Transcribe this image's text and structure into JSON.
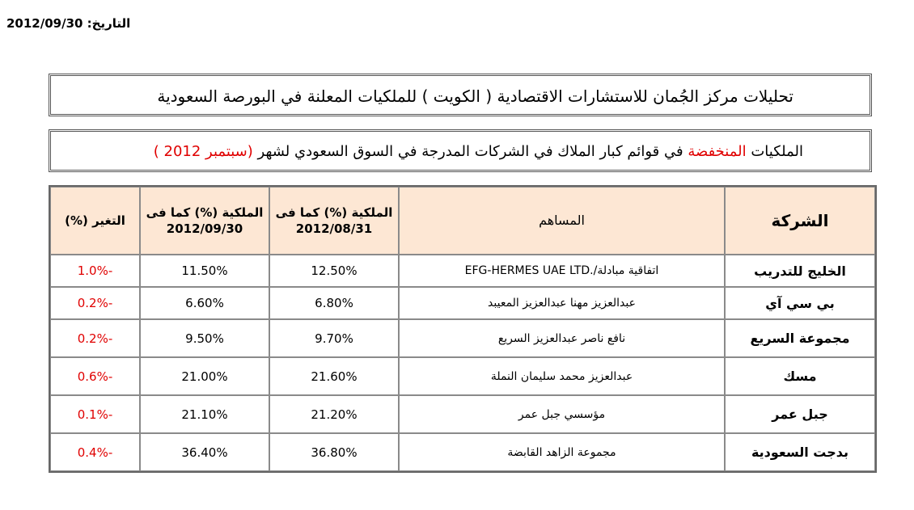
{
  "date_line": "التاريخ: 2012/09/30",
  "title": "تحليلات مركز الجُمان للاستشارات الاقتصادية ( الكويت ) للملكيات المعلنة في البورصة السعودية",
  "subtitle": {
    "part1": "الملكيات ",
    "part2_red": "المنخفضة",
    "part3": " في قوائم كبار الملاك في الشركات المدرجة في السوق السعودي لشهر ",
    "part4_red": "(سبتمبر 2012 )"
  },
  "table": {
    "headers": {
      "company": "الشركة",
      "holder": "المساهم",
      "prev": "الملكية (%) كما فى 2012/08/31",
      "curr": "الملكية (%) كما فى 2012/09/30",
      "change": "التغير (%)"
    },
    "rows": [
      {
        "company": "الخليج للتدريب",
        "holder": "اتفاقية مبادلة/.EFG-HERMES UAE LTD",
        "prev": "12.50%",
        "curr": "11.50%",
        "change": "-1.0%"
      },
      {
        "company": "بي سي آي",
        "holder": "عبدالعزيز مهنا عبدالعزيز المعيبد",
        "prev": "6.80%",
        "curr": "6.60%",
        "change": "-0.2%"
      },
      {
        "company": "مجموعة السريع",
        "holder": "نافع ناصر عبدالعزيز السريع",
        "prev": "9.70%",
        "curr": "9.50%",
        "change": "-0.2%"
      },
      {
        "company": "مسك",
        "holder": "عبدالعزيز محمد سليمان النملة",
        "prev": "21.60%",
        "curr": "21.00%",
        "change": "-0.6%"
      },
      {
        "company": "جبل عمر",
        "holder": "مؤسسي جبل عمر",
        "prev": "21.20%",
        "curr": "21.10%",
        "change": "-0.1%"
      },
      {
        "company": "بدجت السعودية",
        "holder": "مجموعة الزاهد القابضة",
        "prev": "36.80%",
        "curr": "36.40%",
        "change": "-0.4%"
      }
    ]
  }
}
